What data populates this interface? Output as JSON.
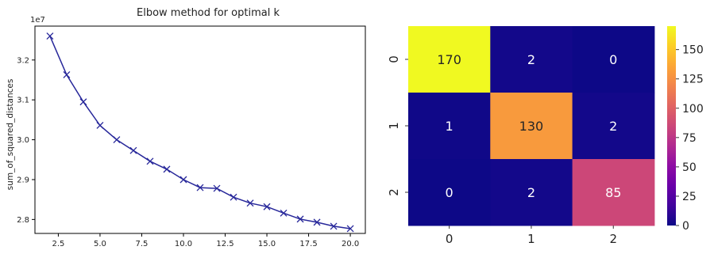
{
  "chart_data": [
    {
      "type": "line",
      "title": "Elbow method for optimal k",
      "xlabel": "",
      "ylabel": "sum_of_squared_distances",
      "y_offset_label": "1e7",
      "xlim": [
        1.1,
        20.9
      ],
      "ylim": [
        2.765,
        3.285
      ],
      "x_ticks": [
        2.5,
        5.0,
        7.5,
        10.0,
        12.5,
        15.0,
        17.5,
        20.0
      ],
      "x_tick_labels": [
        "2.5",
        "5.0",
        "7.5",
        "10.0",
        "12.5",
        "15.0",
        "17.5",
        "20.0"
      ],
      "y_ticks": [
        2.8,
        2.9,
        3.0,
        3.1,
        3.2
      ],
      "y_tick_labels": [
        "2.8",
        "2.9",
        "3.0",
        "3.1",
        "3.2"
      ],
      "grid": false,
      "line_color": "#27279a",
      "marker": "x",
      "x": [
        2,
        3,
        4,
        5,
        6,
        7,
        8,
        9,
        10,
        11,
        12,
        13,
        14,
        15,
        16,
        17,
        18,
        19,
        20
      ],
      "y": [
        3.26,
        3.163,
        3.095,
        3.036,
        3.0,
        2.973,
        2.946,
        2.926,
        2.9,
        2.88,
        2.878,
        2.856,
        2.841,
        2.832,
        2.816,
        2.801,
        2.793,
        2.783,
        2.777
      ]
    },
    {
      "type": "heatmap",
      "colormap": "plasma",
      "x_tick_labels": [
        "0",
        "1",
        "2"
      ],
      "y_tick_labels": [
        "0",
        "1",
        "2"
      ],
      "values": [
        [
          170,
          2,
          0
        ],
        [
          1,
          130,
          2
        ],
        [
          0,
          2,
          85
        ]
      ],
      "cell_labels": [
        [
          "170",
          "2",
          "0"
        ],
        [
          "1",
          "130",
          "2"
        ],
        [
          "0",
          "2",
          "85"
        ]
      ],
      "vmin": 0,
      "vmax": 170,
      "colorbar_ticks": [
        0,
        25,
        50,
        75,
        100,
        125,
        150
      ],
      "colorbar_tick_labels": [
        "0",
        "25",
        "50",
        "75",
        "100",
        "125",
        "150"
      ]
    }
  ]
}
